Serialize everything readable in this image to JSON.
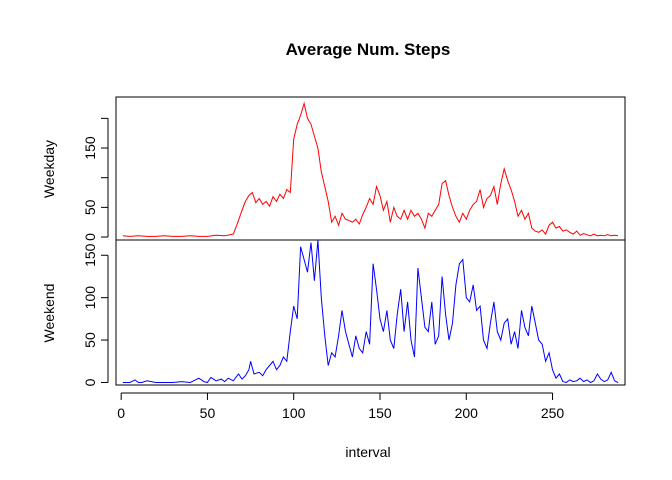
{
  "chart_data": {
    "type": "line",
    "title": "Average Num. Steps",
    "xlabel": "interval",
    "xlim": [
      -3,
      292
    ],
    "x_ticks": [
      0,
      50,
      100,
      150,
      200,
      250
    ],
    "grid": false,
    "legend": false,
    "panels": [
      {
        "name": "Weekday",
        "ylabel": "Weekday",
        "color": "#ff0000",
        "ylim": [
          -5,
          236
        ],
        "y_ticks": [
          0,
          50,
          100,
          150,
          200
        ],
        "y_tick_labels": [
          "0",
          "50",
          "",
          "150",
          ""
        ],
        "x": [
          1,
          5,
          10,
          15,
          20,
          25,
          30,
          35,
          40,
          45,
          50,
          55,
          60,
          65,
          67,
          70,
          72,
          74,
          76,
          78,
          80,
          82,
          84,
          86,
          88,
          90,
          92,
          94,
          96,
          98,
          100,
          102,
          104,
          106,
          108,
          110,
          112,
          114,
          116,
          118,
          120,
          122,
          124,
          126,
          128,
          130,
          132,
          134,
          136,
          138,
          140,
          142,
          144,
          146,
          148,
          150,
          152,
          154,
          156,
          158,
          160,
          162,
          164,
          166,
          168,
          170,
          172,
          174,
          176,
          178,
          180,
          182,
          184,
          186,
          188,
          190,
          192,
          194,
          196,
          198,
          200,
          202,
          204,
          206,
          208,
          210,
          212,
          214,
          216,
          218,
          220,
          222,
          224,
          226,
          228,
          230,
          232,
          234,
          236,
          238,
          240,
          242,
          244,
          246,
          248,
          250,
          252,
          254,
          256,
          258,
          260,
          262,
          264,
          266,
          268,
          270,
          272,
          274,
          276,
          278,
          280,
          282,
          284,
          286,
          288
        ],
        "values": [
          2,
          1,
          2,
          1,
          1,
          2,
          1,
          1,
          2,
          1,
          1,
          3,
          2,
          5,
          20,
          45,
          60,
          70,
          75,
          58,
          65,
          55,
          60,
          52,
          68,
          60,
          72,
          65,
          80,
          75,
          165,
          190,
          205,
          225,
          200,
          190,
          170,
          150,
          110,
          85,
          60,
          25,
          35,
          20,
          40,
          30,
          28,
          25,
          30,
          22,
          38,
          50,
          65,
          55,
          85,
          70,
          45,
          60,
          25,
          50,
          35,
          30,
          45,
          30,
          45,
          35,
          40,
          30,
          15,
          40,
          35,
          45,
          55,
          90,
          95,
          70,
          50,
          35,
          25,
          40,
          30,
          45,
          55,
          60,
          80,
          50,
          65,
          70,
          85,
          55,
          90,
          115,
          95,
          80,
          60,
          35,
          45,
          30,
          40,
          15,
          10,
          8,
          12,
          5,
          20,
          25,
          15,
          18,
          10,
          12,
          8,
          5,
          10,
          3,
          6,
          4,
          2,
          5,
          2,
          3,
          2,
          4,
          2,
          3,
          2
        ]
      },
      {
        "name": "Weekend",
        "ylabel": "Weekend",
        "color": "#0000ff",
        "ylim": [
          -3,
          168
        ],
        "y_ticks": [
          0,
          50,
          100,
          150
        ],
        "y_tick_labels": [
          "0",
          "50",
          "100",
          "150"
        ],
        "x": [
          1,
          3,
          5,
          8,
          10,
          12,
          15,
          20,
          25,
          30,
          35,
          40,
          42,
          45,
          48,
          50,
          52,
          55,
          58,
          60,
          62,
          65,
          68,
          70,
          72,
          74,
          75,
          77,
          80,
          82,
          84,
          86,
          88,
          90,
          92,
          94,
          96,
          98,
          100,
          102,
          104,
          106,
          108,
          110,
          112,
          114,
          116,
          118,
          120,
          122,
          124,
          126,
          128,
          130,
          132,
          134,
          136,
          138,
          140,
          142,
          144,
          146,
          148,
          150,
          152,
          154,
          156,
          158,
          160,
          162,
          164,
          166,
          168,
          170,
          172,
          174,
          176,
          178,
          180,
          182,
          184,
          186,
          188,
          190,
          192,
          194,
          196,
          198,
          200,
          202,
          204,
          206,
          208,
          210,
          212,
          214,
          216,
          218,
          220,
          222,
          224,
          226,
          228,
          230,
          232,
          234,
          236,
          238,
          240,
          242,
          244,
          246,
          248,
          250,
          252,
          254,
          256,
          258,
          260,
          262,
          264,
          266,
          268,
          270,
          272,
          274,
          276,
          278,
          280,
          282,
          284,
          286,
          288
        ],
        "values": [
          0,
          0,
          0,
          3,
          0,
          0,
          2,
          0,
          0,
          0,
          1,
          0,
          2,
          5,
          1,
          0,
          6,
          2,
          4,
          1,
          5,
          2,
          10,
          4,
          8,
          15,
          25,
          10,
          12,
          8,
          15,
          20,
          25,
          15,
          20,
          30,
          25,
          60,
          90,
          75,
          160,
          145,
          130,
          165,
          120,
          168,
          100,
          55,
          20,
          35,
          30,
          55,
          85,
          60,
          45,
          30,
          55,
          40,
          35,
          60,
          45,
          140,
          110,
          75,
          60,
          85,
          50,
          40,
          80,
          110,
          60,
          95,
          50,
          30,
          135,
          100,
          65,
          60,
          95,
          45,
          55,
          125,
          80,
          50,
          70,
          115,
          140,
          145,
          100,
          95,
          115,
          85,
          90,
          50,
          40,
          70,
          95,
          60,
          50,
          70,
          75,
          45,
          60,
          40,
          85,
          65,
          55,
          90,
          70,
          50,
          45,
          25,
          35,
          15,
          5,
          10,
          1,
          0,
          3,
          1,
          2,
          5,
          1,
          3,
          0,
          2,
          10,
          4,
          1,
          3,
          12,
          2,
          0
        ]
      }
    ]
  }
}
